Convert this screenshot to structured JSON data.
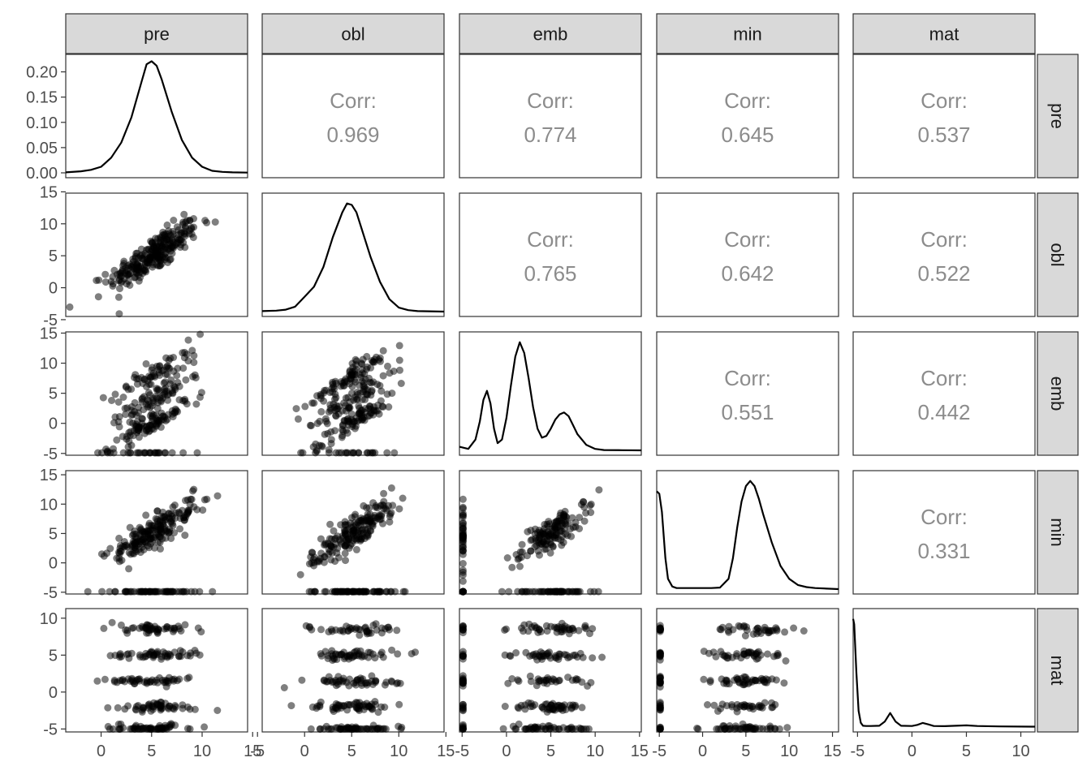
{
  "chart_data": {
    "type": "scatter-matrix",
    "variables": [
      "pre",
      "obl",
      "emb",
      "min",
      "mat"
    ],
    "correlation_label": "Corr:",
    "correlations": {
      "pre-obl": "0.969",
      "pre-emb": "0.774",
      "pre-min": "0.645",
      "pre-mat": "0.537",
      "obl-emb": "0.765",
      "obl-min": "0.642",
      "obl-mat": "0.522",
      "emb-min": "0.551",
      "emb-mat": "0.442",
      "min-mat": "0.331"
    },
    "ranges": {
      "pre": [
        -3.5,
        14.5
      ],
      "obl": [
        -4.5,
        14.8
      ],
      "emb": [
        -5.3,
        15.2
      ],
      "min": [
        -5.3,
        15.7
      ],
      "mat": [
        -5.4,
        11.3
      ]
    },
    "ticks": {
      "pre": [
        "0",
        "5",
        "10",
        "15"
      ],
      "obl": [
        "-5",
        "0",
        "5",
        "10",
        "15"
      ],
      "emb": [
        "-5",
        "0",
        "5",
        "10",
        "15"
      ],
      "min": [
        "-5",
        "0",
        "5",
        "10",
        "15"
      ],
      "mat": [
        "-5",
        "0",
        "5",
        "10"
      ]
    },
    "density_ticks": [
      "0.00",
      "0.05",
      "0.10",
      "0.15",
      "0.20"
    ],
    "density_ylim": [
      0,
      0.225
    ],
    "densities": {
      "pre": {
        "x": [
          -3.5,
          -2,
          -1,
          0,
          1,
          2,
          3,
          4,
          4.5,
          5,
          5.5,
          6,
          7,
          8,
          9,
          10,
          11,
          12,
          13,
          14.5
        ],
        "y": [
          0.001,
          0.003,
          0.006,
          0.012,
          0.03,
          0.06,
          0.11,
          0.18,
          0.215,
          0.221,
          0.212,
          0.185,
          0.12,
          0.065,
          0.03,
          0.012,
          0.004,
          0.002,
          0.001,
          0.0005
        ]
      },
      "obl": {
        "x": [
          -4.5,
          -3,
          -2,
          -1,
          0,
          1,
          2,
          3,
          4,
          4.5,
          5,
          5.5,
          6,
          7,
          8,
          9,
          10,
          11,
          12,
          14.8
        ],
        "y": [
          0.001,
          0.002,
          0.004,
          0.01,
          0.03,
          0.05,
          0.09,
          0.15,
          0.2,
          0.218,
          0.215,
          0.2,
          0.17,
          0.11,
          0.06,
          0.025,
          0.008,
          0.003,
          0.001,
          0
        ]
      },
      "emb": {
        "x": [
          -5.3,
          -4.3,
          -3.5,
          -3,
          -2.6,
          -2.2,
          -1.8,
          -1.4,
          -1,
          -0.5,
          0,
          0.5,
          1,
          1.5,
          2,
          2.5,
          3,
          3.5,
          4,
          4.5,
          5,
          5.5,
          6,
          6.5,
          7,
          7.5,
          8,
          9,
          10,
          11,
          13,
          15.2
        ],
        "y": [
          0.01,
          0.004,
          0.03,
          0.08,
          0.14,
          0.165,
          0.13,
          0.06,
          0.02,
          0.03,
          0.09,
          0.18,
          0.26,
          0.3,
          0.27,
          0.2,
          0.12,
          0.06,
          0.035,
          0.04,
          0.06,
          0.085,
          0.1,
          0.105,
          0.095,
          0.07,
          0.045,
          0.015,
          0.004,
          0.001,
          0.0005,
          0
        ]
      },
      "min": {
        "x": [
          -5.3,
          -5,
          -4.7,
          -4.3,
          -4,
          -3.5,
          -3,
          -1,
          1,
          2,
          3,
          3.5,
          4,
          4.5,
          5,
          5.5,
          6,
          6.5,
          7,
          8,
          9,
          10,
          11,
          12,
          13,
          15.7
        ],
        "y": [
          0.19,
          0.185,
          0.15,
          0.06,
          0.02,
          0.005,
          0.002,
          0.002,
          0.002,
          0.003,
          0.02,
          0.06,
          0.12,
          0.17,
          0.2,
          0.21,
          0.2,
          0.175,
          0.145,
          0.09,
          0.045,
          0.02,
          0.008,
          0.004,
          0.002,
          0
        ]
      },
      "mat": {
        "x": [
          -5.4,
          -5.3,
          -5.1,
          -4.9,
          -4.7,
          -4.5,
          -4.2,
          -3.8,
          -3,
          -2.5,
          -2,
          -1.5,
          -1,
          0,
          0.5,
          1,
          1.5,
          2,
          3,
          4,
          5,
          6,
          8,
          11.3
        ],
        "y": [
          1.0,
          0.95,
          0.5,
          0.15,
          0.04,
          0.012,
          0.01,
          0.01,
          0.012,
          0.05,
          0.13,
          0.05,
          0.012,
          0.01,
          0.02,
          0.038,
          0.025,
          0.01,
          0.008,
          0.012,
          0.016,
          0.01,
          0.006,
          0.004
        ]
      }
    },
    "point_color": "#000000",
    "point_alpha": 0.5,
    "line_color": "#000000",
    "strip_color": "#d9d9d9",
    "corr_text_color": "#8c8c8c"
  }
}
